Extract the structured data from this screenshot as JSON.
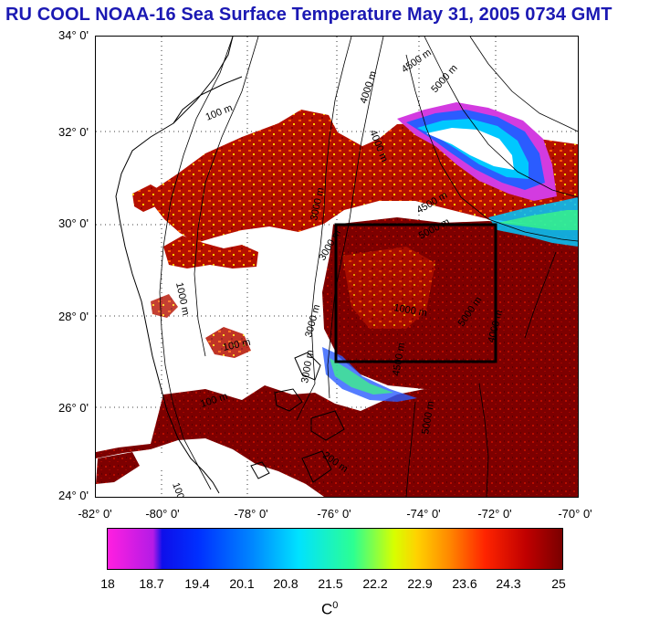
{
  "title": "RU COOL  NOAA-16 Sea Surface Temperature May 31, 2005 0734 GMT",
  "y_axis_labels": [
    "34° 0'",
    "32° 0'",
    "30° 0'",
    "28° 0'",
    "26° 0'",
    "24° 0'"
  ],
  "x_axis_labels": [
    "-82° 0'",
    "-80° 0'",
    "-78° 0'",
    "-76° 0'",
    "-74° 0'",
    "-72° 0'",
    "-70° 0'"
  ],
  "contour_labels": [
    "100 m",
    "4000 m",
    "4500 m",
    "5000 m",
    "3000 m",
    "4000 m",
    "3000 m",
    "4500 m",
    "5000 m",
    "3000 m",
    "1000 m",
    "5000 m",
    "4000 m",
    "100 m",
    "100 m",
    "3000 m",
    "5000 m",
    "4500 m",
    "1000 m",
    "200 m",
    "100"
  ],
  "colorbar": {
    "labels": [
      "18",
      "18.7",
      "19.4",
      "20.1",
      "20.8",
      "21.5",
      "22.2",
      "22.9",
      "23.6",
      "24.3",
      "25"
    ],
    "unit_base": "C",
    "unit_sup": "0"
  },
  "colors": {
    "title": "#1b19b3",
    "sst_warm": "#800000",
    "sst_red": "#c41200",
    "sst_orange": "#ff6a00",
    "sst_yellow": "#ffe600",
    "sst_green": "#3dff7a",
    "sst_cyan": "#00c8ff",
    "sst_blue": "#2b5cff",
    "sst_magenta": "#d33be0"
  }
}
